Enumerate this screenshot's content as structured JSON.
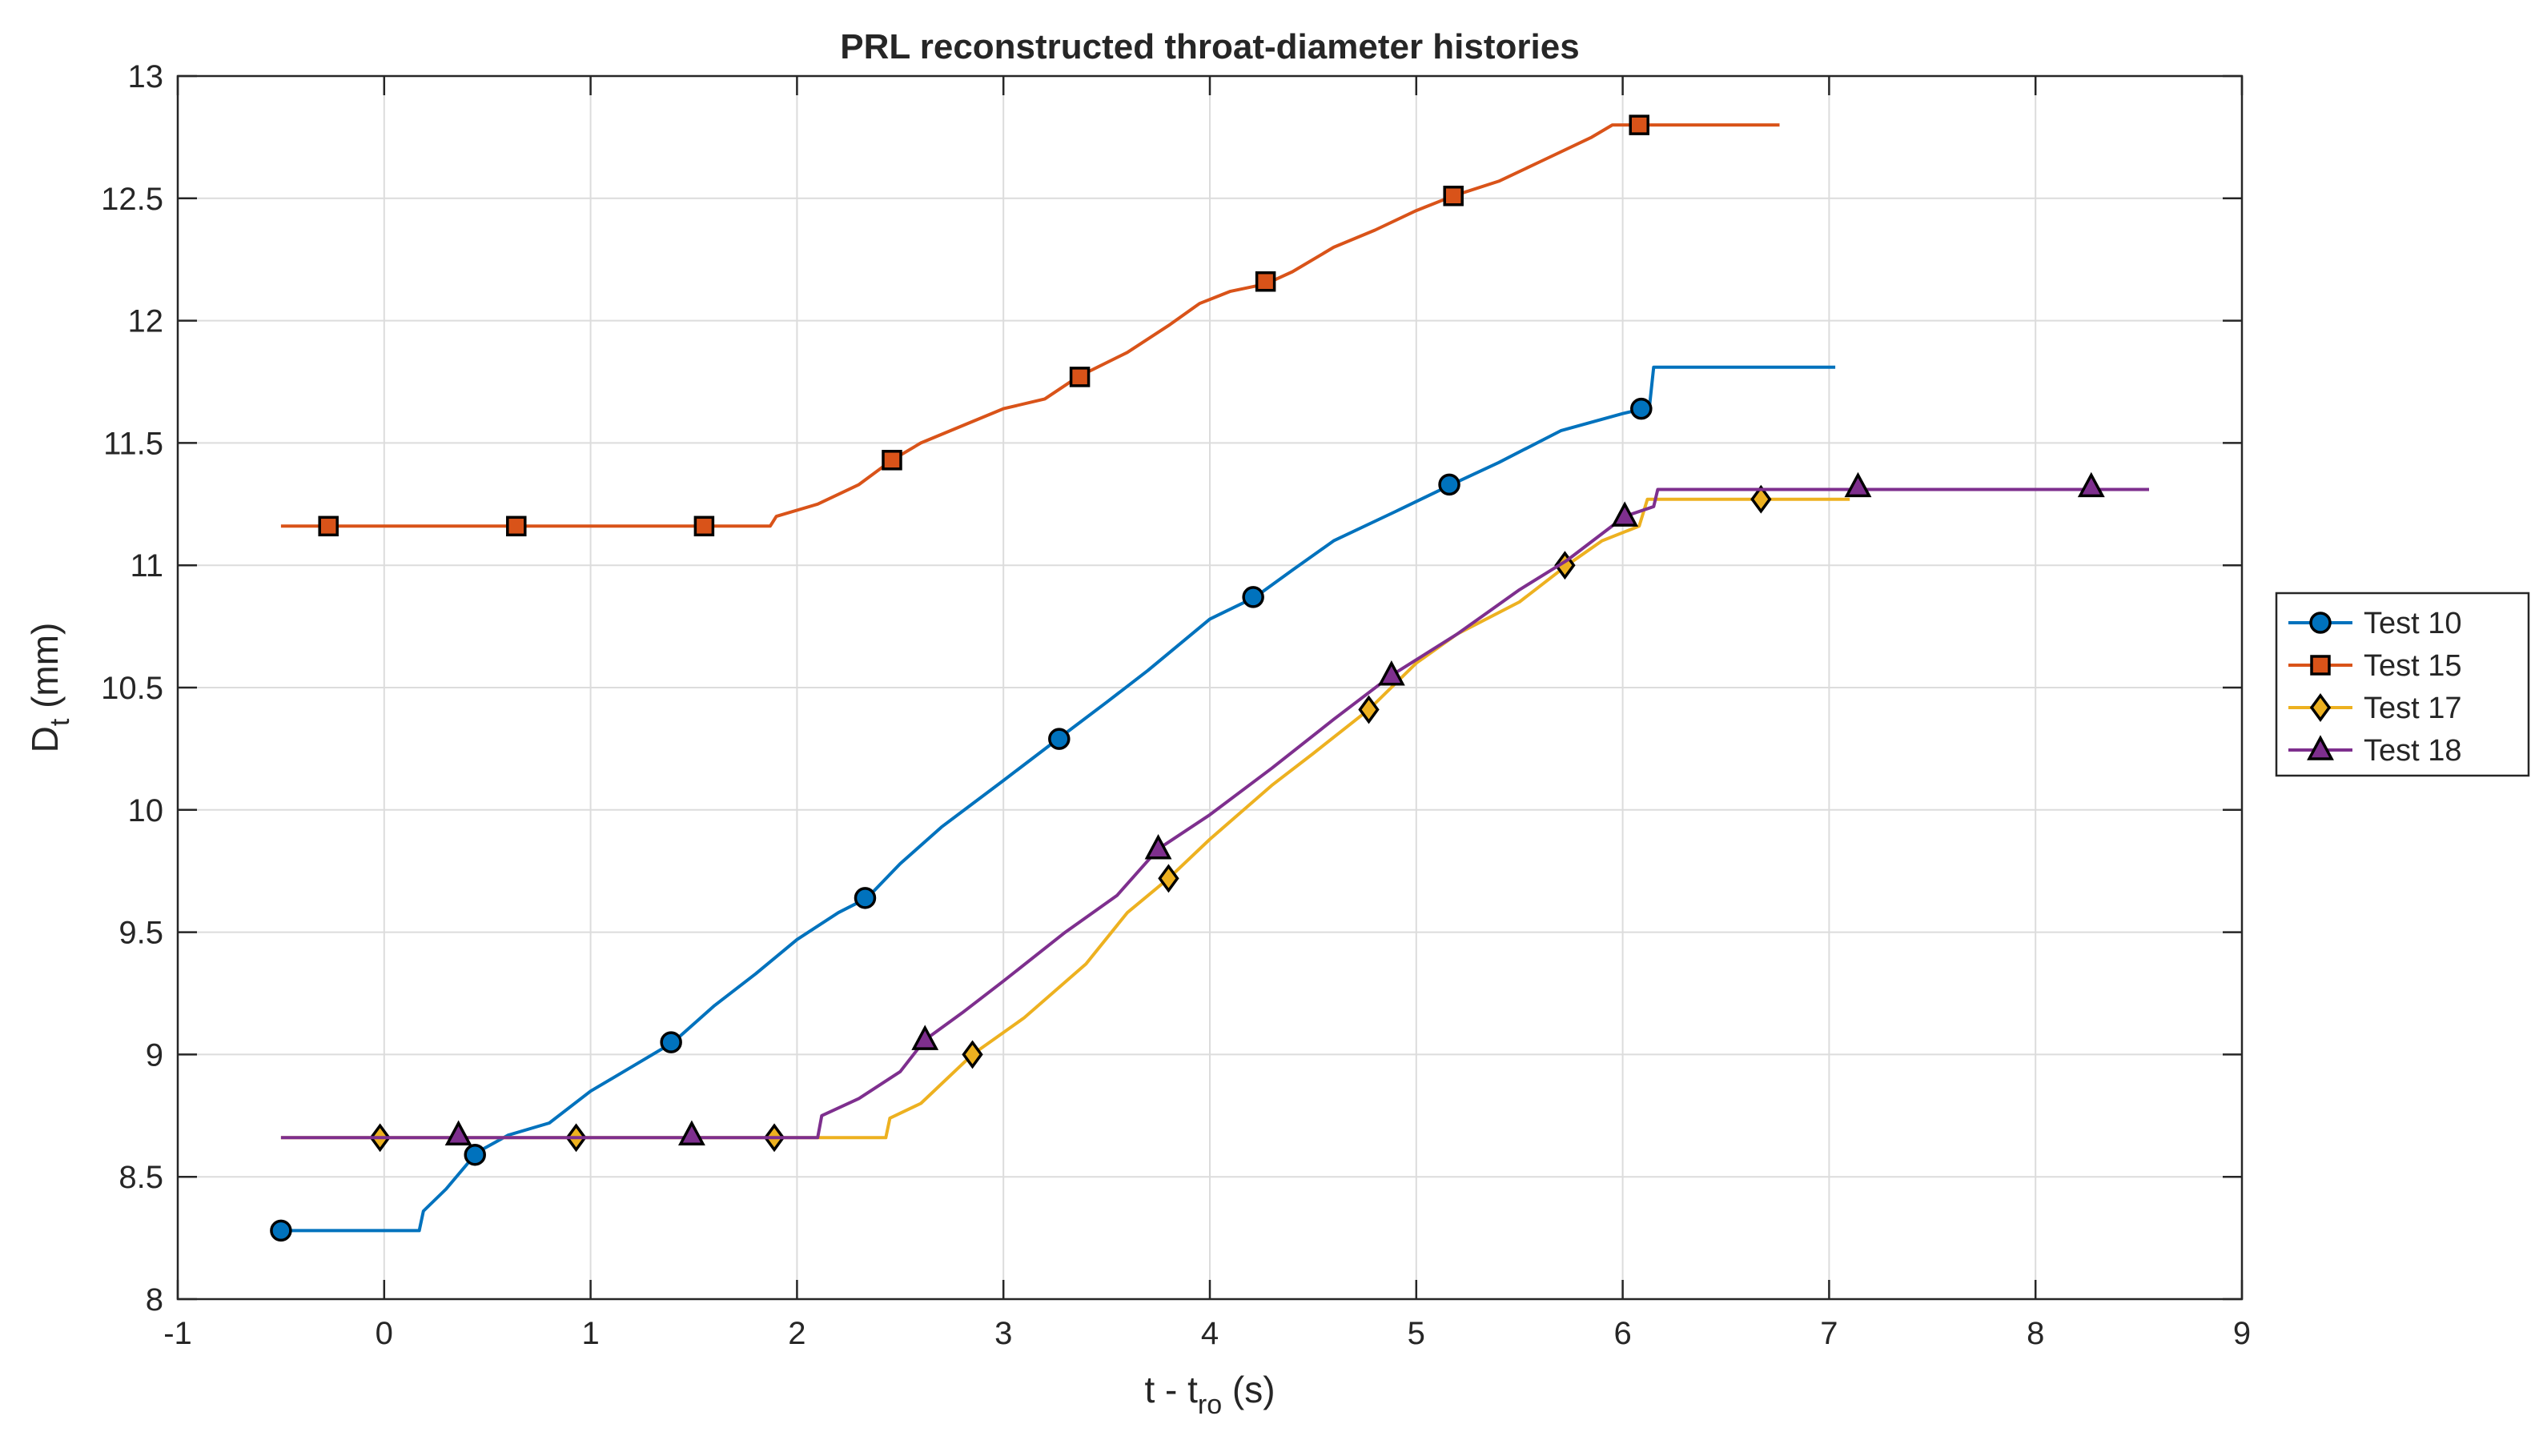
{
  "chart_data": {
    "type": "line",
    "title": "PRL reconstructed throat-diameter histories",
    "xlabel": {
      "main": "t - t",
      "sub": "ro",
      "unit": " (s)"
    },
    "ylabel": {
      "main": "D",
      "sub": "t",
      "unit": " (mm)"
    },
    "xlim": [
      -1,
      9
    ],
    "ylim": [
      8,
      13
    ],
    "xticks": [
      "-1",
      "0",
      "1",
      "2",
      "3",
      "4",
      "5",
      "6",
      "7",
      "8",
      "9"
    ],
    "yticks": [
      "8",
      "8.5",
      "9",
      "9.5",
      "10",
      "10.5",
      "11",
      "11.5",
      "12",
      "12.5",
      "13"
    ],
    "grid": true,
    "legend_position": "right",
    "series": [
      {
        "name": "Test 10",
        "color": "#0072BD",
        "marker": "circle",
        "line": [
          [
            -0.5,
            8.28
          ],
          [
            0.17,
            8.28
          ],
          [
            0.19,
            8.36
          ],
          [
            0.3,
            8.45
          ],
          [
            0.45,
            8.6
          ],
          [
            0.6,
            8.67
          ],
          [
            0.8,
            8.72
          ],
          [
            1.0,
            8.85
          ],
          [
            1.2,
            8.95
          ],
          [
            1.4,
            9.05
          ],
          [
            1.6,
            9.2
          ],
          [
            1.8,
            9.33
          ],
          [
            2.0,
            9.47
          ],
          [
            2.2,
            9.58
          ],
          [
            2.34,
            9.64
          ],
          [
            2.5,
            9.78
          ],
          [
            2.7,
            9.93
          ],
          [
            3.0,
            10.12
          ],
          [
            3.28,
            10.3
          ],
          [
            3.5,
            10.44
          ],
          [
            3.7,
            10.57
          ],
          [
            4.0,
            10.78
          ],
          [
            4.22,
            10.87
          ],
          [
            4.4,
            10.98
          ],
          [
            4.6,
            11.1
          ],
          [
            4.9,
            11.22
          ],
          [
            5.17,
            11.33
          ],
          [
            5.4,
            11.42
          ],
          [
            5.7,
            11.55
          ],
          [
            6.0,
            11.62
          ],
          [
            6.1,
            11.64
          ],
          [
            6.13,
            11.65
          ],
          [
            6.15,
            11.81
          ],
          [
            7.03,
            11.81
          ]
        ],
        "markers": [
          [
            -0.5,
            8.28
          ],
          [
            0.44,
            8.59
          ],
          [
            1.39,
            9.05
          ],
          [
            2.33,
            9.64
          ],
          [
            3.27,
            10.29
          ],
          [
            4.21,
            10.87
          ],
          [
            5.16,
            11.33
          ],
          [
            6.09,
            11.64
          ]
        ]
      },
      {
        "name": "Test 15",
        "color": "#D95319",
        "marker": "square",
        "line": [
          [
            -0.5,
            11.16
          ],
          [
            1.87,
            11.16
          ],
          [
            1.9,
            11.2
          ],
          [
            2.1,
            11.25
          ],
          [
            2.3,
            11.33
          ],
          [
            2.46,
            11.43
          ],
          [
            2.6,
            11.5
          ],
          [
            2.8,
            11.57
          ],
          [
            3.0,
            11.64
          ],
          [
            3.2,
            11.68
          ],
          [
            3.36,
            11.77
          ],
          [
            3.6,
            11.87
          ],
          [
            3.8,
            11.98
          ],
          [
            3.95,
            12.07
          ],
          [
            4.1,
            12.12
          ],
          [
            4.27,
            12.15
          ],
          [
            4.4,
            12.2
          ],
          [
            4.6,
            12.3
          ],
          [
            4.8,
            12.37
          ],
          [
            5.0,
            12.45
          ],
          [
            5.18,
            12.51
          ],
          [
            5.4,
            12.57
          ],
          [
            5.6,
            12.65
          ],
          [
            5.85,
            12.75
          ],
          [
            5.95,
            12.8
          ],
          [
            6.76,
            12.8
          ]
        ],
        "markers": [
          [
            -0.27,
            11.16
          ],
          [
            0.64,
            11.16
          ],
          [
            1.55,
            11.16
          ],
          [
            2.46,
            11.43
          ],
          [
            3.37,
            11.77
          ],
          [
            4.27,
            12.16
          ],
          [
            5.18,
            12.51
          ],
          [
            6.08,
            12.8
          ]
        ]
      },
      {
        "name": "Test 17",
        "color": "#EDB120",
        "marker": "diamond",
        "line": [
          [
            -0.5,
            8.66
          ],
          [
            2.43,
            8.66
          ],
          [
            2.45,
            8.74
          ],
          [
            2.6,
            8.8
          ],
          [
            2.85,
            9.0
          ],
          [
            3.1,
            9.15
          ],
          [
            3.4,
            9.37
          ],
          [
            3.6,
            9.58
          ],
          [
            3.8,
            9.72
          ],
          [
            4.0,
            9.88
          ],
          [
            4.3,
            10.1
          ],
          [
            4.5,
            10.23
          ],
          [
            4.77,
            10.41
          ],
          [
            5.0,
            10.6
          ],
          [
            5.2,
            10.72
          ],
          [
            5.5,
            10.85
          ],
          [
            5.73,
            11.0
          ],
          [
            5.9,
            11.1
          ],
          [
            6.08,
            11.16
          ],
          [
            6.12,
            11.27
          ],
          [
            7.1,
            11.27
          ]
        ],
        "markers": [
          [
            -0.02,
            8.66
          ],
          [
            0.93,
            8.66
          ],
          [
            1.89,
            8.66
          ],
          [
            2.85,
            9.0
          ],
          [
            3.8,
            9.72
          ],
          [
            4.77,
            10.41
          ],
          [
            5.72,
            11.0
          ],
          [
            6.67,
            11.27
          ]
        ]
      },
      {
        "name": "Test 18",
        "color": "#7E2F8E",
        "marker": "triangle",
        "line": [
          [
            -0.5,
            8.66
          ],
          [
            2.1,
            8.66
          ],
          [
            2.12,
            8.75
          ],
          [
            2.3,
            8.82
          ],
          [
            2.5,
            8.93
          ],
          [
            2.62,
            9.06
          ],
          [
            2.8,
            9.17
          ],
          [
            3.0,
            9.3
          ],
          [
            3.3,
            9.5
          ],
          [
            3.55,
            9.65
          ],
          [
            3.75,
            9.84
          ],
          [
            4.0,
            9.98
          ],
          [
            4.3,
            10.17
          ],
          [
            4.6,
            10.37
          ],
          [
            4.88,
            10.55
          ],
          [
            5.2,
            10.72
          ],
          [
            5.5,
            10.9
          ],
          [
            5.73,
            11.02
          ],
          [
            6.01,
            11.2
          ],
          [
            6.15,
            11.24
          ],
          [
            6.17,
            11.31
          ],
          [
            8.55,
            11.31
          ]
        ],
        "markers": [
          [
            0.36,
            8.67
          ],
          [
            1.49,
            8.67
          ],
          [
            2.62,
            9.06
          ],
          [
            3.75,
            9.84
          ],
          [
            4.88,
            10.55
          ],
          [
            6.01,
            11.2
          ],
          [
            7.14,
            11.32
          ],
          [
            8.27,
            11.32
          ]
        ]
      }
    ]
  }
}
